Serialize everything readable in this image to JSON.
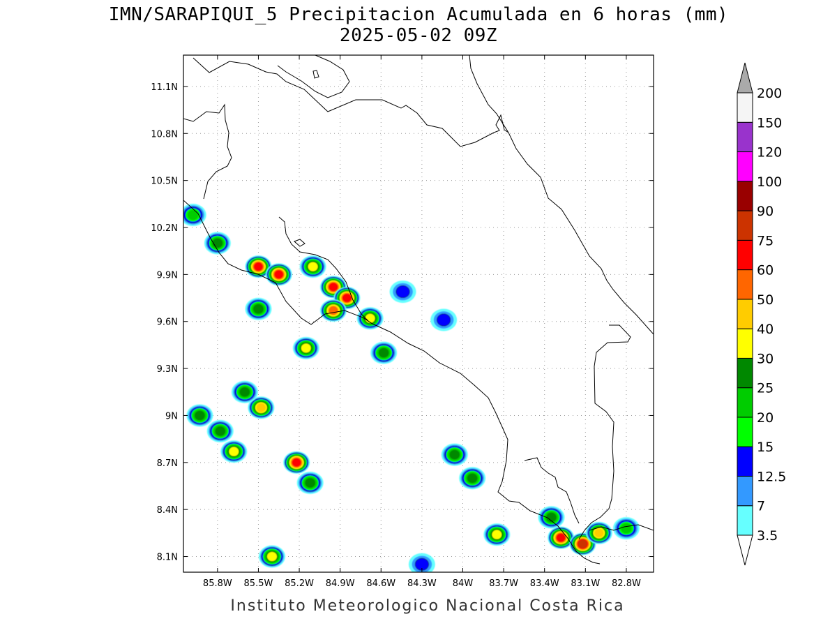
{
  "title_line1": "IMN/SARAPIQUI_5 Precipitacion Acumulada en 6 horas (mm)",
  "title_line2": "2025-05-02 09Z",
  "credit": "Instituto Meteorologico Nacional Costa Rica",
  "map": {
    "lon_range": [
      -86.05,
      -82.6
    ],
    "lat_range": [
      8.0,
      11.3
    ],
    "lon_ticks": [
      "85.8W",
      "85.5W",
      "85.2W",
      "84.9W",
      "84.6W",
      "84.3W",
      "84W",
      "83.7W",
      "83.4W",
      "83.1W",
      "82.8W"
    ],
    "lat_ticks": [
      "8.1N",
      "8.4N",
      "8.7N",
      "9N",
      "9.3N",
      "9.6N",
      "9.9N",
      "10.2N",
      "10.5N",
      "10.8N",
      "11.1N"
    ],
    "gridlines": "dotted"
  },
  "colorbar": {
    "levels": [
      "3.5",
      "7",
      "12.5",
      "15",
      "20",
      "25",
      "30",
      "40",
      "50",
      "60",
      "75",
      "90",
      "100",
      "120",
      "150",
      "200"
    ],
    "colors": [
      "#ffffff",
      "#66ffff",
      "#3399ff",
      "#0000ff",
      "#00ff00",
      "#00cc00",
      "#008800",
      "#ffff00",
      "#ffcc00",
      "#ff6600",
      "#ff0000",
      "#cc3300",
      "#990000",
      "#ff00ff",
      "#9933cc",
      "#f5f5f5",
      "#aaaaaa"
    ]
  },
  "rain_cells": [
    {
      "lon": -85.98,
      "lat": 10.28,
      "max": "20"
    },
    {
      "lon": -85.8,
      "lat": 10.1,
      "max": "25"
    },
    {
      "lon": -85.5,
      "lat": 9.95,
      "max": "60"
    },
    {
      "lon": -85.35,
      "lat": 9.9,
      "max": "60"
    },
    {
      "lon": -85.1,
      "lat": 9.95,
      "max": "30"
    },
    {
      "lon": -84.95,
      "lat": 9.82,
      "max": "60"
    },
    {
      "lon": -84.85,
      "lat": 9.75,
      "max": "60"
    },
    {
      "lon": -84.95,
      "lat": 9.67,
      "max": "50"
    },
    {
      "lon": -84.68,
      "lat": 9.62,
      "max": "30"
    },
    {
      "lon": -85.15,
      "lat": 9.43,
      "max": "30"
    },
    {
      "lon": -85.48,
      "lat": 9.05,
      "max": "40"
    },
    {
      "lon": -85.6,
      "lat": 9.15,
      "max": "25"
    },
    {
      "lon": -85.93,
      "lat": 9.0,
      "max": "25"
    },
    {
      "lon": -85.78,
      "lat": 8.9,
      "max": "25"
    },
    {
      "lon": -85.68,
      "lat": 8.77,
      "max": "30"
    },
    {
      "lon": -85.22,
      "lat": 8.7,
      "max": "60"
    },
    {
      "lon": -85.12,
      "lat": 8.57,
      "max": "25"
    },
    {
      "lon": -85.4,
      "lat": 8.1,
      "max": "30"
    },
    {
      "lon": -85.5,
      "lat": 9.68,
      "max": "25"
    },
    {
      "lon": -84.58,
      "lat": 9.4,
      "max": "25"
    },
    {
      "lon": -84.06,
      "lat": 8.75,
      "max": "25"
    },
    {
      "lon": -83.93,
      "lat": 8.6,
      "max": "25"
    },
    {
      "lon": -83.75,
      "lat": 8.24,
      "max": "30"
    },
    {
      "lon": -83.35,
      "lat": 8.35,
      "max": "25"
    },
    {
      "lon": -83.28,
      "lat": 8.22,
      "max": "60"
    },
    {
      "lon": -83.12,
      "lat": 8.18,
      "max": "75"
    },
    {
      "lon": -83.0,
      "lat": 8.25,
      "max": "40"
    },
    {
      "lon": -82.8,
      "lat": 8.28,
      "max": "20"
    },
    {
      "lon": -84.3,
      "lat": 8.05,
      "max": "12.5"
    },
    {
      "lon": -84.14,
      "lat": 9.61,
      "max": "12.5"
    },
    {
      "lon": -84.44,
      "lat": 9.79,
      "max": "12.5"
    }
  ]
}
